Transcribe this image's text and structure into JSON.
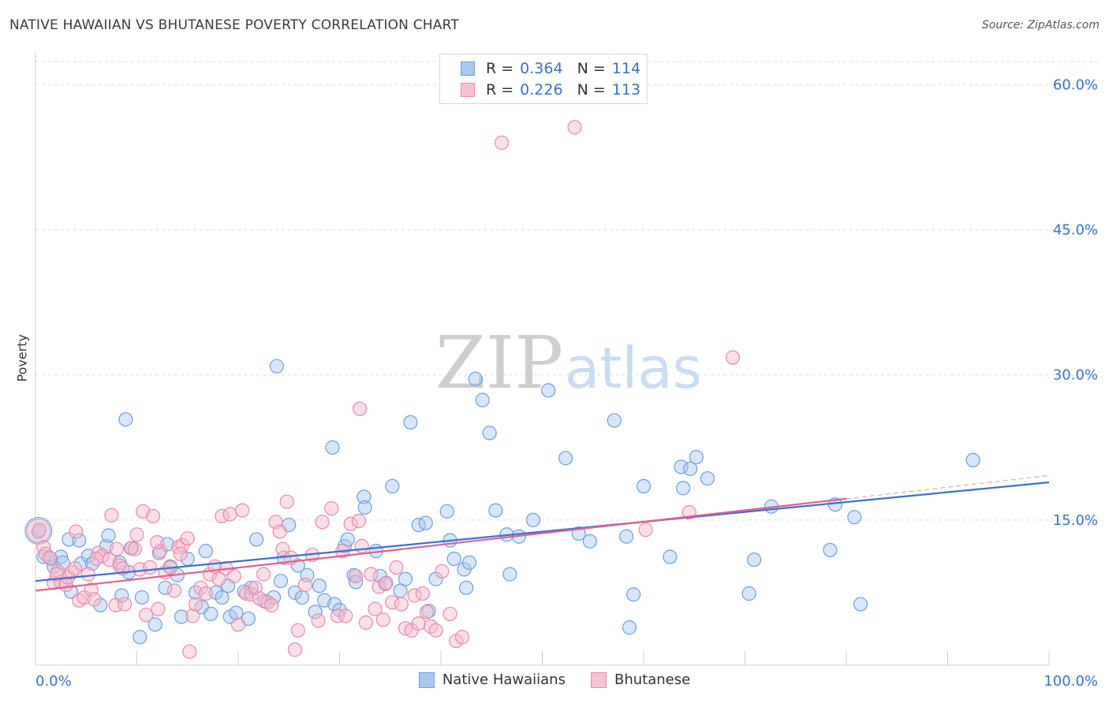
{
  "title": "NATIVE HAWAIIAN VS BHUTANESE POVERTY CORRELATION CHART",
  "source": "Source: ZipAtlas.com",
  "watermark": {
    "zip": "ZIP",
    "atlas": "atlas"
  },
  "legend": {
    "rows": [
      {
        "r_label": "R =",
        "r_value": "0.364",
        "n_label": "N =",
        "n_value": "114"
      },
      {
        "r_label": "R =",
        "r_value": "0.226",
        "n_label": "N =",
        "n_value": "113"
      }
    ]
  },
  "colors": {
    "blue_fill": "#a9c8f0",
    "blue_stroke": "#6f9fdc",
    "blue_line": "#3a72d0",
    "pink_fill": "#f6b8cb",
    "pink_stroke": "#e98aa8",
    "pink_line": "#e06090",
    "tick": "#3a72c4"
  },
  "chart_data": {
    "type": "scatter",
    "xlabel": "",
    "ylabel": "Poverty",
    "xlim": [
      0,
      100
    ],
    "ylim": [
      0,
      60
    ],
    "x_ticks": [
      "0.0%",
      "100.0%"
    ],
    "y_ticks": [
      {
        "v": 15,
        "label": "15.0%"
      },
      {
        "v": 30,
        "label": "30.0%"
      },
      {
        "v": 45,
        "label": "45.0%"
      },
      {
        "v": 60,
        "label": "60.0%"
      }
    ],
    "grid": true,
    "legend_position": "bottom",
    "series": [
      {
        "name": "Native Hawaiians",
        "color": "#6f9fdc",
        "trend": [
          [
            0,
            8.7
          ],
          [
            100,
            18.9
          ]
        ],
        "points": [
          [
            0.3,
            13.8
          ],
          [
            0.8,
            11.2
          ],
          [
            1.5,
            11.0
          ],
          [
            1.8,
            10.2
          ],
          [
            2.5,
            11.2
          ],
          [
            2.7,
            10.6
          ],
          [
            3.3,
            13.0
          ],
          [
            3.5,
            7.6
          ],
          [
            4.3,
            12.9
          ],
          [
            4.5,
            10.5
          ],
          [
            5.2,
            11.3
          ],
          [
            5.6,
            10.5
          ],
          [
            6.4,
            6.2
          ],
          [
            7.0,
            12.3
          ],
          [
            7.2,
            13.4
          ],
          [
            8.3,
            10.6
          ],
          [
            8.5,
            7.2
          ],
          [
            8.9,
            25.4
          ],
          [
            9.2,
            9.6
          ],
          [
            9.5,
            12.1
          ],
          [
            10.3,
            2.9
          ],
          [
            10.5,
            7.0
          ],
          [
            11.8,
            4.2
          ],
          [
            12.2,
            11.6
          ],
          [
            12.8,
            8.0
          ],
          [
            13.0,
            12.5
          ],
          [
            13.3,
            10.2
          ],
          [
            14.0,
            9.3
          ],
          [
            14.4,
            5.0
          ],
          [
            15.0,
            11.0
          ],
          [
            15.8,
            7.5
          ],
          [
            16.4,
            6.0
          ],
          [
            16.8,
            11.8
          ],
          [
            17.3,
            5.3
          ],
          [
            17.8,
            7.5
          ],
          [
            18.4,
            7.0
          ],
          [
            19.0,
            8.2
          ],
          [
            19.2,
            5.0
          ],
          [
            19.8,
            5.4
          ],
          [
            20.6,
            7.6
          ],
          [
            21.0,
            4.8
          ],
          [
            21.3,
            8.0
          ],
          [
            21.8,
            13.0
          ],
          [
            22.6,
            6.6
          ],
          [
            23.5,
            7.0
          ],
          [
            23.8,
            30.9
          ],
          [
            24.2,
            8.7
          ],
          [
            24.5,
            11.1
          ],
          [
            25.0,
            14.5
          ],
          [
            25.6,
            7.5
          ],
          [
            25.9,
            10.3
          ],
          [
            26.3,
            7.0
          ],
          [
            26.8,
            9.3
          ],
          [
            27.6,
            5.5
          ],
          [
            28.0,
            8.2
          ],
          [
            28.5,
            6.7
          ],
          [
            29.3,
            22.5
          ],
          [
            29.5,
            6.3
          ],
          [
            30.0,
            5.7
          ],
          [
            30.5,
            12.3
          ],
          [
            30.8,
            13.0
          ],
          [
            31.4,
            9.3
          ],
          [
            31.6,
            8.6
          ],
          [
            32.4,
            17.4
          ],
          [
            32.5,
            16.3
          ],
          [
            33.6,
            11.8
          ],
          [
            34.0,
            9.2
          ],
          [
            34.5,
            8.4
          ],
          [
            35.2,
            18.5
          ],
          [
            36.0,
            7.7
          ],
          [
            36.5,
            8.9
          ],
          [
            37.0,
            25.1
          ],
          [
            37.8,
            14.5
          ],
          [
            38.5,
            14.7
          ],
          [
            38.8,
            5.6
          ],
          [
            39.5,
            8.9
          ],
          [
            40.6,
            15.9
          ],
          [
            40.9,
            12.9
          ],
          [
            41.3,
            11.0
          ],
          [
            42.3,
            9.9
          ],
          [
            42.5,
            8.0
          ],
          [
            42.8,
            10.6
          ],
          [
            43.4,
            29.6
          ],
          [
            44.1,
            27.4
          ],
          [
            44.8,
            24.0
          ],
          [
            45.4,
            16.0
          ],
          [
            46.8,
            9.4
          ],
          [
            46.5,
            13.5
          ],
          [
            47.7,
            13.3
          ],
          [
            49.1,
            15.0
          ],
          [
            50.6,
            28.4
          ],
          [
            52.3,
            21.4
          ],
          [
            53.6,
            13.6
          ],
          [
            54.7,
            12.8
          ],
          [
            57.1,
            25.3
          ],
          [
            58.3,
            13.3
          ],
          [
            59.0,
            7.3
          ],
          [
            58.6,
            3.9
          ],
          [
            60.0,
            18.5
          ],
          [
            62.6,
            11.2
          ],
          [
            63.7,
            20.5
          ],
          [
            63.9,
            18.3
          ],
          [
            64.6,
            20.3
          ],
          [
            65.2,
            21.5
          ],
          [
            66.3,
            19.3
          ],
          [
            70.4,
            7.4
          ],
          [
            70.9,
            10.9
          ],
          [
            72.6,
            16.4
          ],
          [
            78.4,
            11.9
          ],
          [
            78.9,
            16.6
          ],
          [
            80.8,
            15.3
          ],
          [
            81.4,
            6.3
          ],
          [
            92.5,
            21.2
          ]
        ]
      },
      {
        "name": "Bhutanese",
        "color": "#e98aa8",
        "trend": [
          [
            0,
            7.7
          ],
          [
            80,
            17.2
          ]
        ],
        "trend_extension": [
          [
            80,
            17.2
          ],
          [
            100,
            19.6
          ]
        ],
        "points": [
          [
            0.4,
            14.0
          ],
          [
            0.8,
            12.2
          ],
          [
            1.0,
            11.5
          ],
          [
            1.4,
            11.1
          ],
          [
            1.8,
            8.5
          ],
          [
            2.2,
            9.7
          ],
          [
            2.5,
            8.6
          ],
          [
            3.0,
            8.3
          ],
          [
            3.2,
            9.1
          ],
          [
            3.6,
            9.6
          ],
          [
            4.0,
            13.8
          ],
          [
            4.3,
            6.7
          ],
          [
            4.8,
            7.0
          ],
          [
            5.2,
            9.4
          ],
          [
            5.5,
            7.8
          ],
          [
            5.8,
            6.8
          ],
          [
            6.2,
            11.6
          ],
          [
            6.6,
            11.3
          ],
          [
            7.3,
            10.9
          ],
          [
            7.5,
            15.5
          ],
          [
            7.9,
            6.2
          ],
          [
            8.3,
            10.3
          ],
          [
            8.6,
            10.0
          ],
          [
            8.8,
            6.3
          ],
          [
            9.4,
            12.1
          ],
          [
            9.8,
            12.0
          ],
          [
            10.3,
            9.9
          ],
          [
            10.6,
            15.9
          ],
          [
            10.9,
            5.2
          ],
          [
            11.3,
            10.1
          ],
          [
            11.6,
            15.4
          ],
          [
            12.1,
            5.8
          ],
          [
            12.3,
            11.8
          ],
          [
            12.8,
            9.6
          ],
          [
            13.3,
            10.1
          ],
          [
            13.7,
            7.7
          ],
          [
            14.1,
            12.2
          ],
          [
            14.5,
            12.4
          ],
          [
            15.0,
            13.1
          ],
          [
            15.2,
            1.4
          ],
          [
            15.5,
            5.1
          ],
          [
            15.8,
            6.3
          ],
          [
            16.3,
            8.0
          ],
          [
            16.8,
            7.4
          ],
          [
            17.2,
            9.4
          ],
          [
            17.7,
            10.2
          ],
          [
            18.1,
            8.9
          ],
          [
            18.4,
            15.4
          ],
          [
            18.8,
            10.0
          ],
          [
            19.2,
            15.6
          ],
          [
            19.6,
            9.2
          ],
          [
            20.0,
            4.2
          ],
          [
            20.4,
            16.0
          ],
          [
            20.8,
            7.4
          ],
          [
            21.3,
            7.3
          ],
          [
            21.7,
            8.0
          ],
          [
            22.1,
            6.9
          ],
          [
            22.5,
            9.4
          ],
          [
            22.9,
            6.5
          ],
          [
            23.3,
            6.2
          ],
          [
            23.7,
            14.8
          ],
          [
            24.1,
            13.8
          ],
          [
            24.4,
            12.0
          ],
          [
            24.8,
            16.9
          ],
          [
            25.2,
            11.1
          ],
          [
            25.6,
            1.6
          ],
          [
            25.9,
            3.6
          ],
          [
            26.6,
            8.3
          ],
          [
            27.3,
            11.4
          ],
          [
            27.9,
            4.6
          ],
          [
            28.3,
            14.8
          ],
          [
            29.2,
            16.2
          ],
          [
            29.8,
            5.1
          ],
          [
            30.3,
            11.8
          ],
          [
            30.6,
            5.1
          ],
          [
            31.1,
            14.6
          ],
          [
            31.6,
            9.2
          ],
          [
            31.9,
            14.9
          ],
          [
            32.2,
            12.3
          ],
          [
            32.6,
            4.4
          ],
          [
            33.1,
            9.4
          ],
          [
            32.0,
            26.5
          ],
          [
            33.5,
            5.8
          ],
          [
            33.9,
            8.1
          ],
          [
            34.3,
            4.7
          ],
          [
            34.6,
            8.5
          ],
          [
            35.2,
            6.5
          ],
          [
            35.6,
            10.1
          ],
          [
            36.1,
            6.3
          ],
          [
            36.5,
            3.8
          ],
          [
            37.1,
            3.6
          ],
          [
            37.4,
            7.2
          ],
          [
            37.8,
            4.3
          ],
          [
            38.2,
            7.4
          ],
          [
            38.6,
            5.5
          ],
          [
            39.0,
            4.0
          ],
          [
            39.5,
            3.6
          ],
          [
            40.1,
            9.7
          ],
          [
            40.9,
            5.3
          ],
          [
            41.5,
            2.5
          ],
          [
            42.1,
            2.9
          ],
          [
            46.0,
            54.0
          ],
          [
            53.2,
            55.6
          ],
          [
            60.2,
            14.0
          ],
          [
            64.5,
            15.8
          ],
          [
            68.8,
            31.8
          ],
          [
            2.1,
            9.4
          ],
          [
            3.9,
            10.0
          ],
          [
            6.0,
            11.0
          ],
          [
            8.0,
            12.0
          ],
          [
            10.0,
            13.5
          ],
          [
            12.0,
            12.7
          ],
          [
            14.3,
            11.5
          ]
        ]
      }
    ]
  }
}
